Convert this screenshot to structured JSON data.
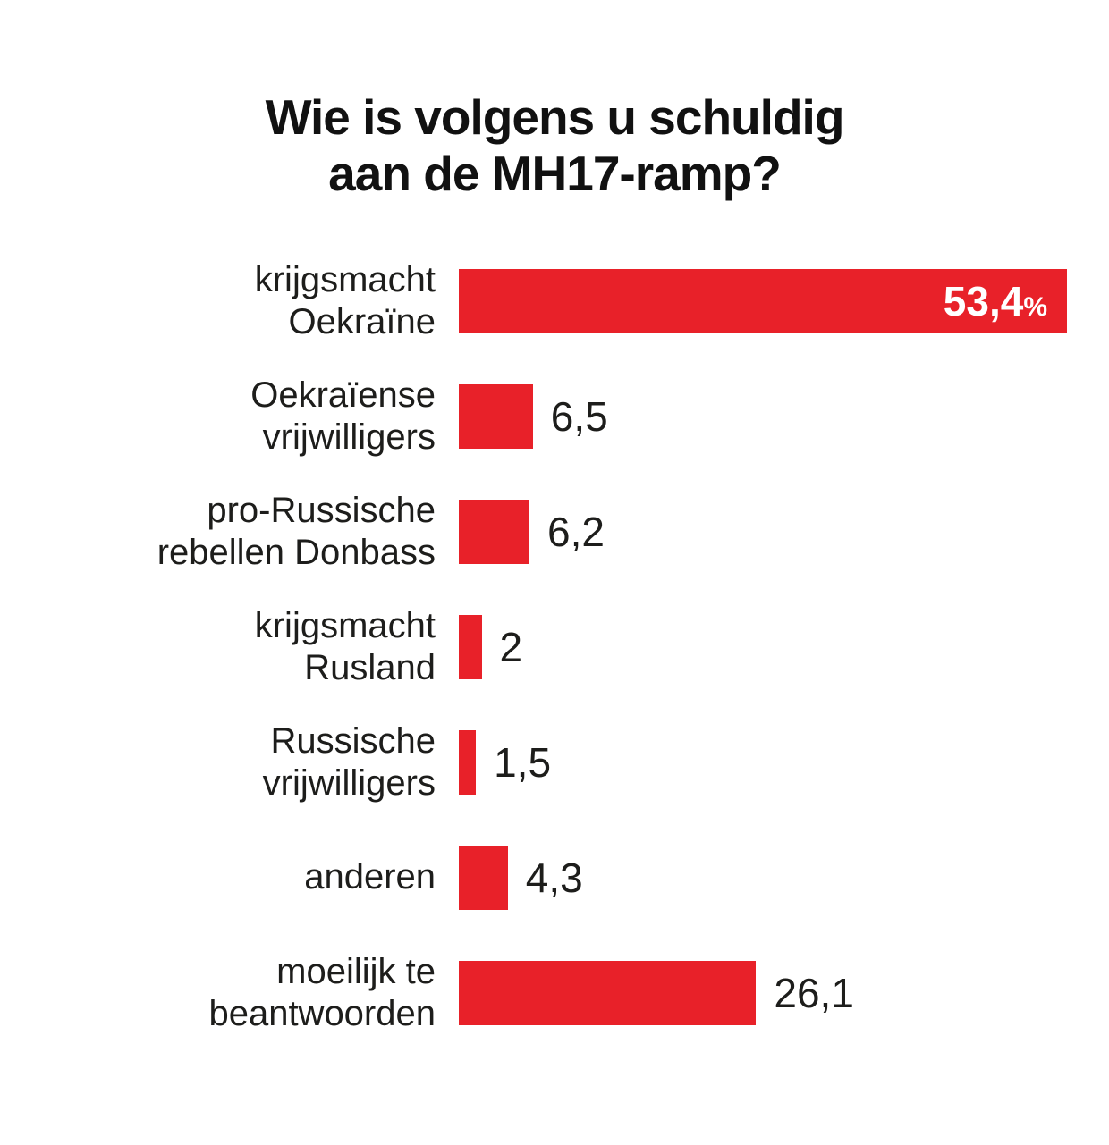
{
  "title": {
    "line1": "Wie is volgens u schuldig",
    "line2": "aan de MH17-ramp?"
  },
  "colors": {
    "bar": "#e82129",
    "title_text": "#111111",
    "label_text": "#1d1d1b",
    "value_inside_text": "#ffffff",
    "background": "#ffffff"
  },
  "chart_data": {
    "type": "bar",
    "orientation": "horizontal",
    "title": "Wie is volgens u schuldig aan de MH17-ramp?",
    "xlabel": "",
    "ylabel": "",
    "unit": "%",
    "grid": false,
    "legend": false,
    "axis_range": [
      0,
      53.4
    ],
    "categories": [
      [
        "krijgsmacht",
        "Oekraïne"
      ],
      [
        "Oekraïense",
        "vrijwilligers"
      ],
      [
        "pro-Russische",
        "rebellen Donbass"
      ],
      [
        "krijgsmacht",
        "Rusland"
      ],
      [
        "Russische",
        "vrijwilligers"
      ],
      [
        "anderen"
      ],
      [
        "moeilijk te",
        "beantwoorden"
      ]
    ],
    "values": [
      53.4,
      6.5,
      6.2,
      2,
      1.5,
      4.3,
      26.1
    ],
    "value_labels": [
      "53,4",
      "6,5",
      "6,2",
      "2",
      "1,5",
      "4,3",
      "26,1"
    ],
    "value_label_position": [
      "inside",
      "outside",
      "outside",
      "outside",
      "outside",
      "outside",
      "outside"
    ],
    "value_label_suffix": [
      "%",
      "",
      "",
      "",
      "",
      "",
      ""
    ]
  }
}
